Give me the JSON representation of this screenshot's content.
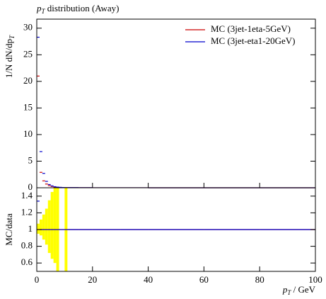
{
  "chart_data": [
    {
      "type": "histogram-points",
      "title": {
        "symbol": "p",
        "subscript": "T",
        "text": " distribution (Away)"
      },
      "ylabel": {
        "text": "1/N dN/dp",
        "subscript": "T"
      },
      "bins": [
        0,
        1,
        2,
        3,
        4,
        5,
        6,
        7,
        8,
        9,
        10,
        11,
        15,
        20,
        30,
        40,
        60,
        80,
        100
      ],
      "xlim": [
        0,
        100
      ],
      "xticks": [
        0,
        20,
        40,
        60,
        80,
        100
      ],
      "ylim": [
        0,
        31.7
      ],
      "yticks": [
        0,
        5,
        10,
        15,
        20,
        25,
        30
      ],
      "legend": "top-right",
      "series": [
        {
          "name": "MC (3jet-1eta-5GeV)",
          "color": "#cc0000",
          "values": [
            21,
            2.9,
            1.3,
            0.7,
            0.4,
            0.25,
            0.15,
            0.1,
            0.06,
            0.04,
            0.03,
            0.03,
            0.02,
            0.01,
            0.005,
            0.003,
            0.001,
            0.0005
          ]
        },
        {
          "name": "MC (3jet-eta1-20GeV)",
          "color": "#0000cc",
          "values": [
            28.3,
            6.8,
            2.7,
            1.2,
            0.6,
            0.35,
            0.2,
            0.12,
            0.08,
            0.05,
            0.03,
            0.03,
            0.02,
            0.01,
            0.005,
            0.003,
            0.001,
            0.0005
          ]
        }
      ]
    },
    {
      "type": "ratio",
      "ylabel": "MC/data",
      "xlabel": {
        "symbol": "p",
        "subscript": "T",
        "text": " / GeV"
      },
      "xlim": [
        0,
        100
      ],
      "xticks": [
        0,
        20,
        40,
        60,
        80,
        100
      ],
      "ylim": [
        0.5,
        1.5
      ],
      "yticks": [
        0.6,
        0.8,
        1,
        1.2,
        1.4
      ],
      "band_color": "#ffff00",
      "band_low": [
        0.95,
        0.93,
        0.88,
        0.82,
        0.72,
        0.65,
        0.6,
        0.5,
        null,
        null,
        0.5,
        null,
        null,
        null,
        null,
        null,
        null,
        null
      ],
      "band_high": [
        1.07,
        1.12,
        1.18,
        1.25,
        1.35,
        1.45,
        1.5,
        1.5,
        null,
        null,
        1.5,
        null,
        null,
        null,
        null,
        null,
        null,
        null
      ],
      "series": [
        {
          "color": "#cc0000",
          "values": [
            1,
            1,
            1,
            1,
            1,
            1,
            1,
            1,
            1,
            1,
            1,
            1,
            1,
            1,
            1,
            1,
            1,
            1
          ]
        },
        {
          "color": "#0000cc",
          "values": [
            1.34,
            1,
            1,
            1,
            1,
            1,
            1,
            1,
            1,
            1,
            1,
            1,
            1,
            1,
            1,
            1,
            1,
            1
          ]
        }
      ]
    }
  ]
}
